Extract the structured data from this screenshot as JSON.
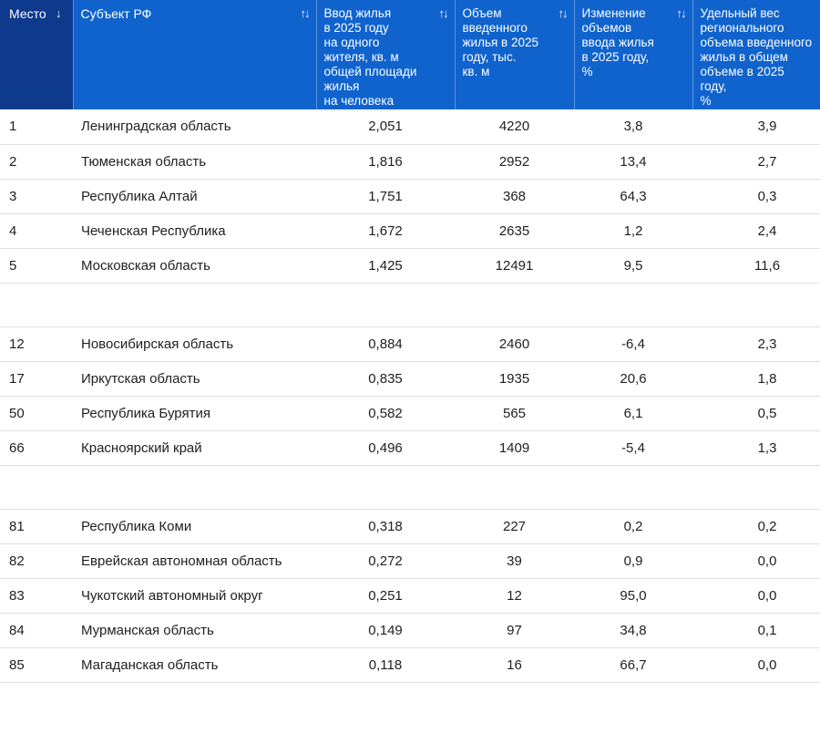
{
  "colors": {
    "header_bg": "#1063cd",
    "header_sorted_bg": "#0d3a8c",
    "header_text": "#ffffff",
    "row_border": "#e0e0e0",
    "body_text": "#212121"
  },
  "table": {
    "columns": [
      {
        "label": "Место",
        "sort_state": "sorted-descending",
        "sort_glyph": "↓"
      },
      {
        "label": "Субъект РФ",
        "sort_state": "sortable",
        "sort_glyph": "↑↓"
      },
      {
        "label": "Ввод жилья\nв 2025 году\nна одного\nжителя, кв. м\nобщей площади\nжилья\nна человека",
        "sort_state": "sortable",
        "sort_glyph": "↑↓"
      },
      {
        "label": "Объем\nвведенного\nжилья в 2025\nгоду, тыс.\nкв. м",
        "sort_state": "sortable",
        "sort_glyph": "↑↓"
      },
      {
        "label": "Изменение\nобъемов\nввода жилья\nв 2025 году,\n%",
        "sort_state": "sortable",
        "sort_glyph": "↑↓"
      },
      {
        "label": "Удельный вес\nрегионального\nобъема введенного\nжилья в общем\nобъеме в 2025 году,\n%",
        "sort_state": "none",
        "sort_glyph": ""
      }
    ],
    "groups": [
      [
        {
          "place": "1",
          "region": "Ленинградская область",
          "per_capita": "2,051",
          "volume": "4220",
          "change_pct": "3,8",
          "share_pct": "3,9"
        },
        {
          "place": "2",
          "region": "Тюменская область",
          "per_capita": "1,816",
          "volume": "2952",
          "change_pct": "13,4",
          "share_pct": "2,7"
        },
        {
          "place": "3",
          "region": "Республика Алтай",
          "per_capita": "1,751",
          "volume": "368",
          "change_pct": "64,3",
          "share_pct": "0,3"
        },
        {
          "place": "4",
          "region": "Чеченская Республика",
          "per_capita": "1,672",
          "volume": "2635",
          "change_pct": "1,2",
          "share_pct": "2,4"
        },
        {
          "place": "5",
          "region": "Московская область",
          "per_capita": "1,425",
          "volume": "12491",
          "change_pct": "9,5",
          "share_pct": "11,6"
        }
      ],
      [
        {
          "place": "12",
          "region": "Новосибирская область",
          "per_capita": "0,884",
          "volume": "2460",
          "change_pct": "-6,4",
          "share_pct": "2,3"
        },
        {
          "place": "17",
          "region": "Иркутская область",
          "per_capita": "0,835",
          "volume": "1935",
          "change_pct": "20,6",
          "share_pct": "1,8"
        },
        {
          "place": "50",
          "region": "Республика Бурятия",
          "per_capita": "0,582",
          "volume": "565",
          "change_pct": "6,1",
          "share_pct": "0,5"
        },
        {
          "place": "66",
          "region": "Красноярский край",
          "per_capita": "0,496",
          "volume": "1409",
          "change_pct": "-5,4",
          "share_pct": "1,3"
        }
      ],
      [
        {
          "place": "81",
          "region": "Республика Коми",
          "per_capita": "0,318",
          "volume": "227",
          "change_pct": "0,2",
          "share_pct": "0,2"
        },
        {
          "place": "82",
          "region": "Еврейская автономная область",
          "per_capita": "0,272",
          "volume": "39",
          "change_pct": "0,9",
          "share_pct": "0,0"
        },
        {
          "place": "83",
          "region": "Чукотский автономный округ",
          "per_capita": "0,251",
          "volume": "12",
          "change_pct": "95,0",
          "share_pct": "0,0"
        },
        {
          "place": "84",
          "region": "Мурманская область",
          "per_capita": "0,149",
          "volume": "97",
          "change_pct": "34,8",
          "share_pct": "0,1"
        },
        {
          "place": "85",
          "region": "Магаданская область",
          "per_capita": "0,118",
          "volume": "16",
          "change_pct": "66,7",
          "share_pct": "0,0"
        }
      ]
    ]
  }
}
